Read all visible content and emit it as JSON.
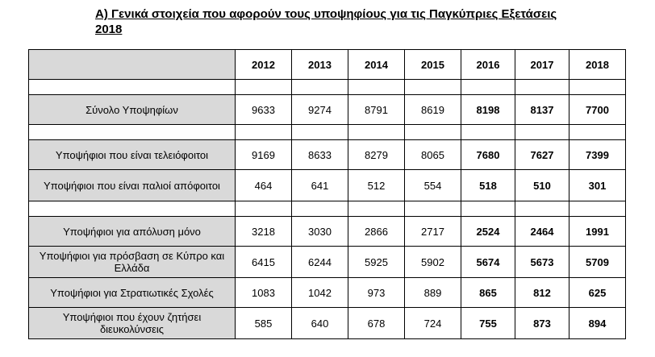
{
  "title": {
    "line1": "A) Γενικά στοιχεία που αφορούν τους υποψηφίους για τις Παγκύπριες Εξετάσεις",
    "line2": "2018"
  },
  "table": {
    "years": [
      "2012",
      "2013",
      "2014",
      "2015",
      "2016",
      "2017",
      "2018"
    ],
    "rows": [
      {
        "label": "Σύνολο Υποψηφίων",
        "values": [
          "9633",
          "9274",
          "8791",
          "8619",
          "8198",
          "8137",
          "7700"
        ]
      },
      {
        "label": "Υποψήφιοι που είναι τελειόφοιτοι",
        "values": [
          "9169",
          "8633",
          "8279",
          "8065",
          "7680",
          "7627",
          "7399"
        ]
      },
      {
        "label": "Υποψήφιοι που είναι παλιοί απόφοιτοι",
        "values": [
          "464",
          "641",
          "512",
          "554",
          "518",
          "510",
          "301"
        ]
      },
      {
        "label": "Υποψήφιοι για απόλυση μόνο",
        "values": [
          "3218",
          "3030",
          "2866",
          "2717",
          "2524",
          "2464",
          "1991"
        ]
      },
      {
        "label": "Υποψήφιοι για πρόσβαση σε Κύπρο και Ελλάδα",
        "values": [
          "6415",
          "6244",
          "5925",
          "5902",
          "5674",
          "5673",
          "5709"
        ]
      },
      {
        "label": "Υποψήφιοι για Στρατιωτικές Σχολές",
        "values": [
          "1083",
          "1042",
          "973",
          "889",
          "865",
          "812",
          "625"
        ]
      },
      {
        "label": "Υποψήφιοι  που έχουν ζητήσει διευκολύνσεις",
        "values": [
          "585",
          "640",
          "678",
          "724",
          "755",
          "873",
          "894"
        ]
      }
    ]
  }
}
